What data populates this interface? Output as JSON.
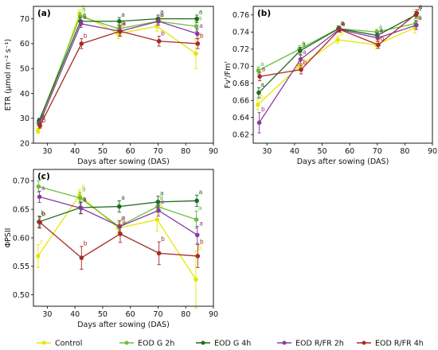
{
  "colors": {
    "Control": "#e6e600",
    "EOD G 2h": "#6abf3f",
    "EOD G 4h": "#1f6a1f",
    "EOD R/FR 2h": "#8b3aa0",
    "EOD R/FR 4h": "#a52a2a"
  },
  "legend": {
    "items": [
      "Control",
      "EOD G 2h",
      "EOD G 4h",
      "EOD R/FR 2h",
      "EOD R/FR 4h"
    ]
  },
  "chart_data": [
    {
      "type": "line",
      "panel": "(a)",
      "xlabel": "Days after sowing (DAS)",
      "ylabel": "ETR (μmol m⁻² s⁻¹)",
      "xlim": [
        25,
        90
      ],
      "ylim": [
        20,
        75
      ],
      "xticks": [
        30,
        40,
        50,
        60,
        70,
        80,
        90
      ],
      "yticks": [
        20,
        30,
        40,
        50,
        60,
        70
      ],
      "x": [
        27,
        42,
        56,
        70,
        84
      ],
      "series": [
        {
          "name": "Control",
          "values": [
            25,
            72,
            64,
            67,
            56
          ],
          "err": [
            1,
            1.5,
            2,
            2,
            6
          ],
          "labels": [
            "c",
            "a",
            "b",
            "b",
            "b"
          ]
        },
        {
          "name": "EOD G 2h",
          "values": [
            28,
            71,
            66,
            69,
            67
          ],
          "err": [
            1,
            1.5,
            1.5,
            1.5,
            2
          ],
          "labels": [
            "b",
            "a",
            "a",
            "a",
            "a"
          ]
        },
        {
          "name": "EOD G 4h",
          "values": [
            29,
            69,
            69,
            70,
            70
          ],
          "err": [
            1,
            1.5,
            1.5,
            1.5,
            1.5
          ],
          "labels": [
            "a",
            "a",
            "a",
            "a",
            "a"
          ]
        },
        {
          "name": "EOD R/FR 2h",
          "values": [
            28,
            68,
            65,
            69,
            64
          ],
          "err": [
            1,
            1.5,
            2,
            1.5,
            2
          ],
          "labels": [
            "b",
            "a",
            "a",
            "a",
            "a"
          ]
        },
        {
          "name": "EOD R/FR 4h",
          "values": [
            27,
            60,
            65,
            61,
            60
          ],
          "err": [
            1,
            2,
            2,
            2,
            2
          ],
          "labels": [
            "b",
            "b",
            "a",
            "b",
            "b"
          ]
        }
      ]
    },
    {
      "type": "line",
      "panel": "(b)",
      "xlabel": "Days after sowing (DAS)",
      "ylabel": "Fv'/Fm'",
      "xlim": [
        25,
        90
      ],
      "ylim": [
        0.61,
        0.77
      ],
      "xticks": [
        30,
        40,
        50,
        60,
        70,
        80,
        90
      ],
      "yticks": [
        0.62,
        0.64,
        0.66,
        0.68,
        0.7,
        0.72,
        0.74,
        0.76
      ],
      "x": [
        27,
        42,
        56,
        70,
        84
      ],
      "series": [
        {
          "name": "Control",
          "values": [
            0.655,
            0.7,
            0.731,
            0.725,
            0.745
          ],
          "err": [
            0.006,
            0.005,
            0.004,
            0.005,
            0.006
          ],
          "labels": [
            "b",
            "b",
            "a",
            "b",
            "b"
          ]
        },
        {
          "name": "EOD G 2h",
          "values": [
            0.695,
            0.72,
            0.744,
            0.74,
            0.75
          ],
          "err": [
            0.004,
            0.004,
            0.003,
            0.003,
            0.004
          ],
          "labels": [
            "a",
            "a",
            "a",
            "a",
            "a"
          ]
        },
        {
          "name": "EOD G 4h",
          "values": [
            0.669,
            0.718,
            0.744,
            0.736,
            0.76
          ],
          "err": [
            0.006,
            0.004,
            0.003,
            0.003,
            0.004
          ],
          "labels": [
            "a",
            "a",
            "a",
            "a",
            "a"
          ]
        },
        {
          "name": "EOD R/FR 2h",
          "values": [
            0.634,
            0.708,
            0.743,
            0.733,
            0.748
          ],
          "err": [
            0.012,
            0.005,
            0.003,
            0.004,
            0.005
          ],
          "labels": [
            "b",
            "a",
            "a",
            "a",
            "a"
          ]
        },
        {
          "name": "EOD R/FR 4h",
          "values": [
            0.688,
            0.696,
            0.743,
            0.725,
            0.762
          ],
          "err": [
            0.005,
            0.005,
            0.003,
            0.004,
            0.004
          ],
          "labels": [
            "a",
            "b",
            "a",
            "b",
            "a"
          ]
        }
      ]
    },
    {
      "type": "line",
      "panel": "(c)",
      "xlabel": "Days after sowing (DAS)",
      "ylabel": "ΦPSII",
      "xlim": [
        25,
        90
      ],
      "ylim": [
        0.48,
        0.72
      ],
      "xticks": [
        30,
        40,
        50,
        60,
        70,
        80,
        90
      ],
      "yticks": [
        0.5,
        0.55,
        0.6,
        0.65,
        0.7
      ],
      "x": [
        27,
        42,
        56,
        70,
        84
      ],
      "series": [
        {
          "name": "Control",
          "values": [
            0.568,
            0.675,
            0.617,
            0.632,
            0.527
          ],
          "err": [
            0.02,
            0.01,
            0.01,
            0.02,
            0.05
          ],
          "labels": [
            "c",
            "a",
            "a",
            "a",
            "b"
          ]
        },
        {
          "name": "EOD G 2h",
          "values": [
            0.69,
            0.67,
            0.62,
            0.655,
            0.632
          ],
          "err": [
            0.01,
            0.01,
            0.01,
            0.01,
            0.015
          ],
          "labels": [
            "a",
            "a",
            "a",
            "a",
            "a"
          ]
        },
        {
          "name": "EOD G 4h",
          "values": [
            0.628,
            0.653,
            0.655,
            0.663,
            0.665
          ],
          "err": [
            0.01,
            0.01,
            0.01,
            0.01,
            0.01
          ],
          "labels": [
            "b",
            "a",
            "a",
            "a",
            "a"
          ]
        },
        {
          "name": "EOD R/FR 2h",
          "values": [
            0.672,
            0.652,
            0.62,
            0.648,
            0.605
          ],
          "err": [
            0.01,
            0.01,
            0.01,
            0.01,
            0.015
          ],
          "labels": [
            "a",
            "a",
            "a",
            "a",
            "a"
          ]
        },
        {
          "name": "EOD R/FR 4h",
          "values": [
            0.627,
            0.565,
            0.607,
            0.573,
            0.568
          ],
          "err": [
            0.01,
            0.02,
            0.015,
            0.02,
            0.02
          ],
          "labels": [
            "b",
            "b",
            "a",
            "b",
            "b"
          ]
        }
      ]
    }
  ]
}
